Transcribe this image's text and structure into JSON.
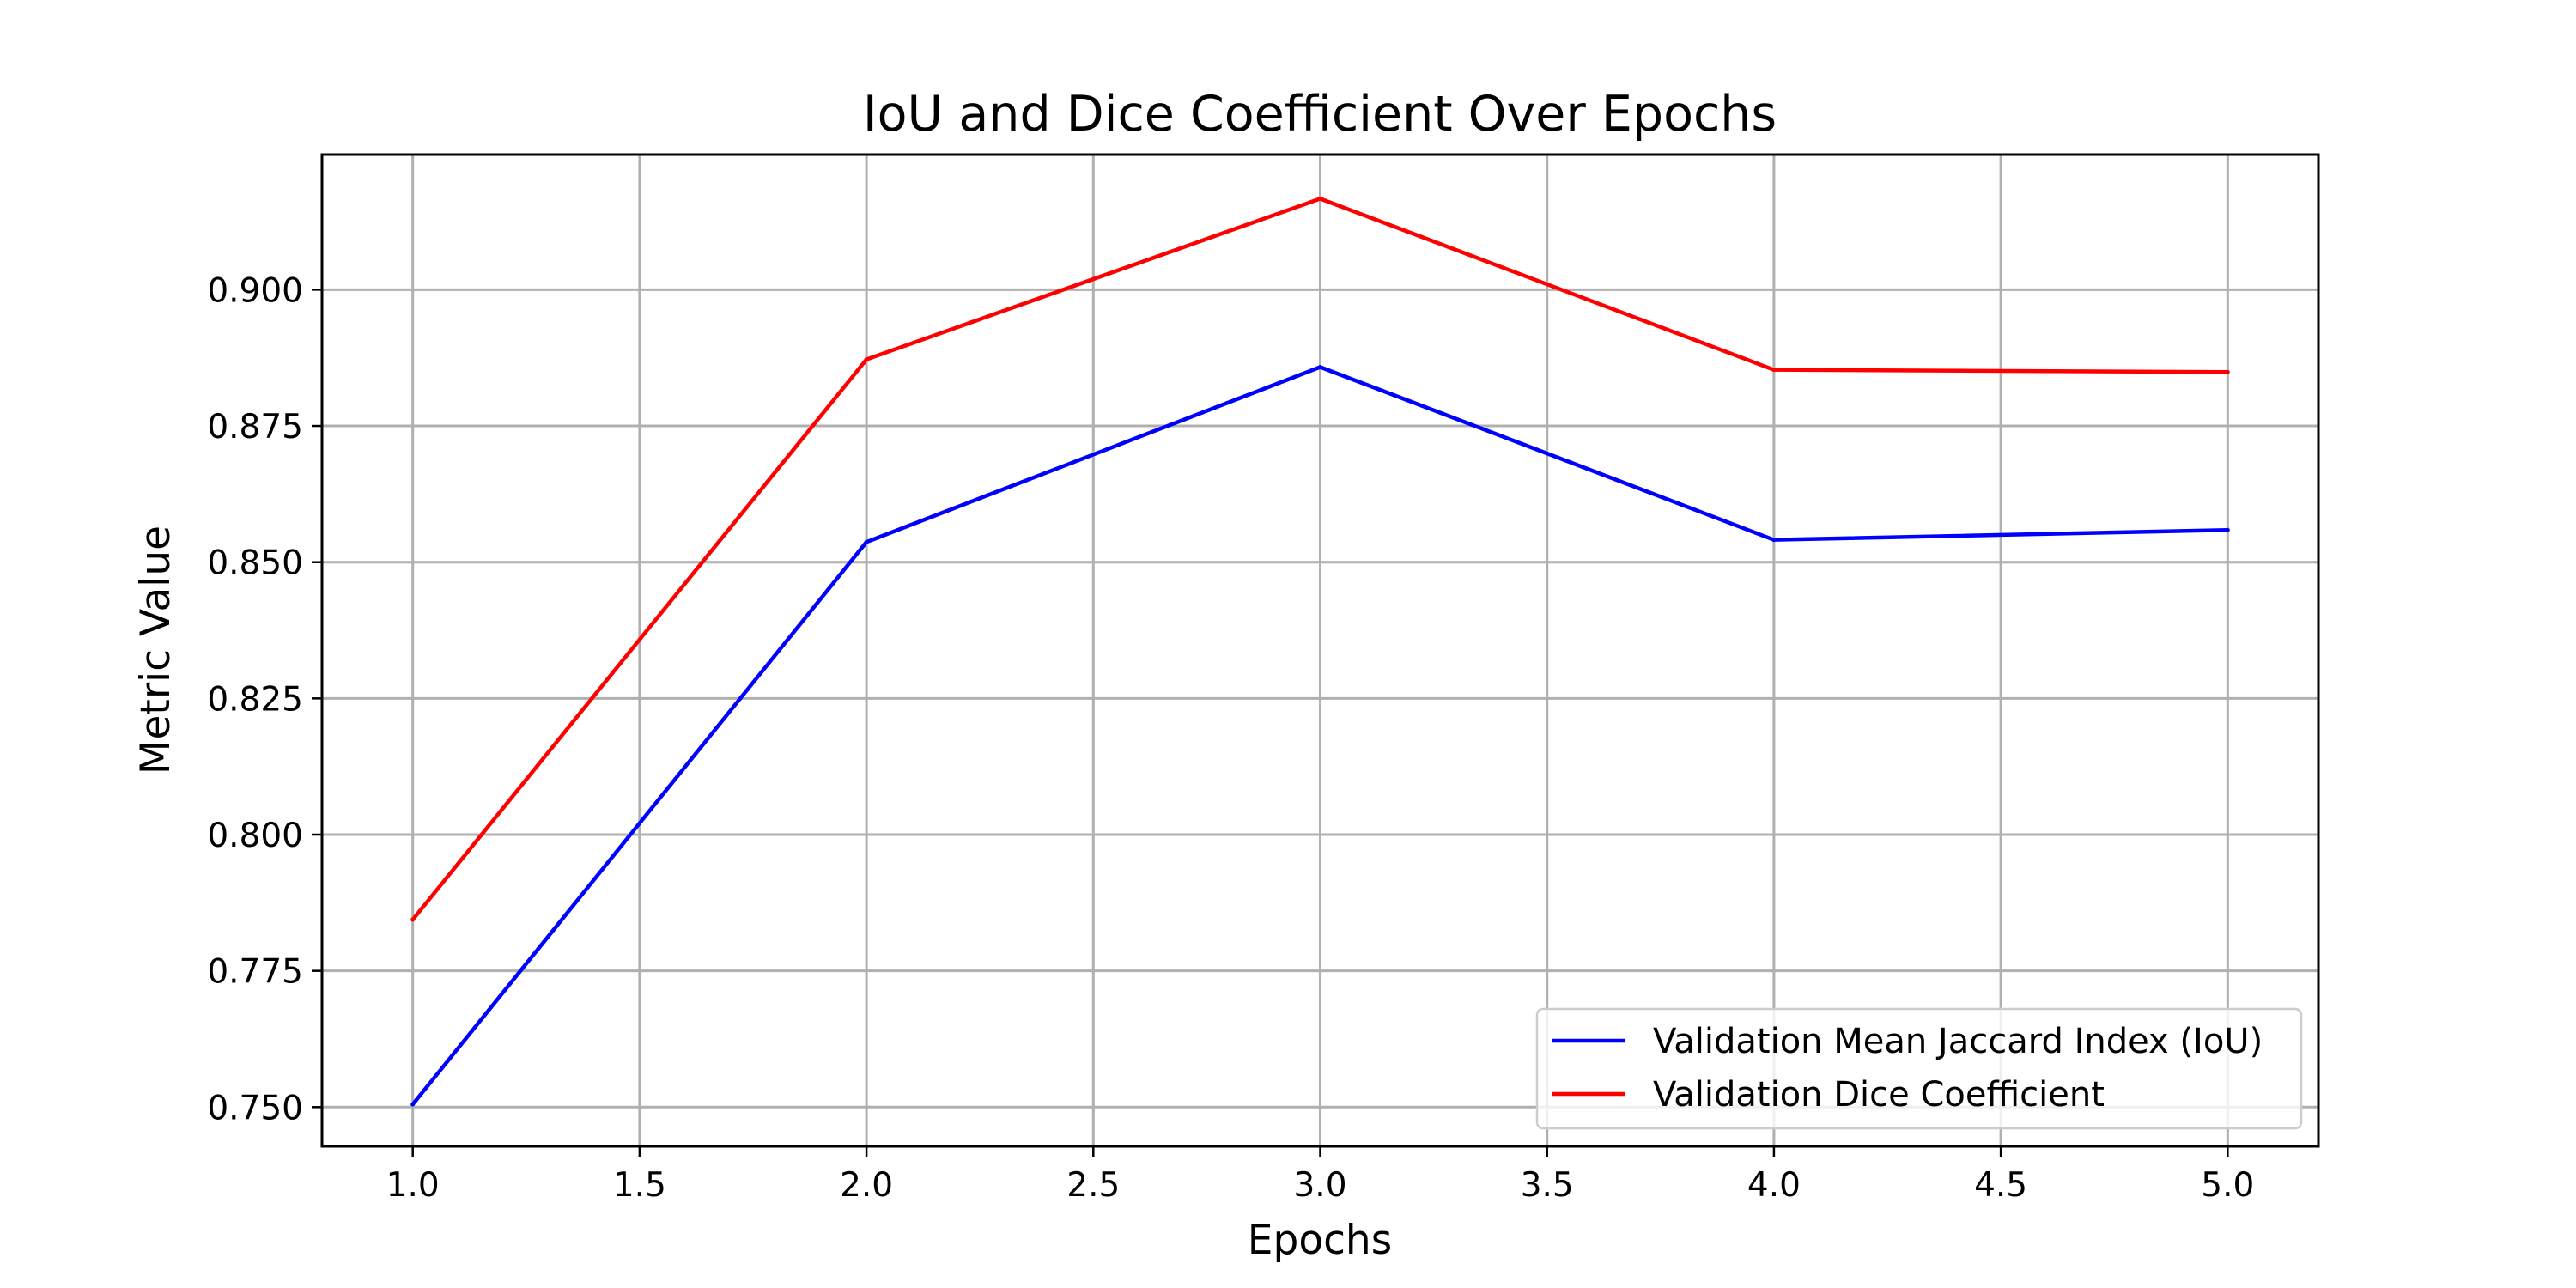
{
  "chart_data": {
    "type": "line",
    "title": "IoU and Dice Coefficient Over Epochs",
    "xlabel": "Epochs",
    "ylabel": "Metric Value",
    "x": [
      1,
      2,
      3,
      4,
      5
    ],
    "xlim": [
      0.8,
      5.2
    ],
    "ylim": [
      0.7428,
      0.9248
    ],
    "xticks": [
      1.0,
      1.5,
      2.0,
      2.5,
      3.0,
      3.5,
      4.0,
      4.5,
      5.0
    ],
    "xtick_labels": [
      "1.0",
      "1.5",
      "2.0",
      "2.5",
      "3.0",
      "3.5",
      "4.0",
      "4.5",
      "5.0"
    ],
    "yticks": [
      0.75,
      0.775,
      0.8,
      0.825,
      0.85,
      0.875,
      0.9
    ],
    "ytick_labels": [
      "0.750",
      "0.775",
      "0.800",
      "0.825",
      "0.850",
      "0.875",
      "0.900"
    ],
    "grid": true,
    "legend_position": "bottom-right",
    "series": [
      {
        "name": "Validation Mean Jaccard Index (IoU)",
        "color": "#0000ff",
        "values": [
          0.7505,
          0.8537,
          0.8858,
          0.8541,
          0.8559
        ]
      },
      {
        "name": "Validation Dice Coefficient",
        "color": "#ff0000",
        "values": [
          0.7844,
          0.8872,
          0.9167,
          0.8853,
          0.8849
        ]
      }
    ]
  }
}
